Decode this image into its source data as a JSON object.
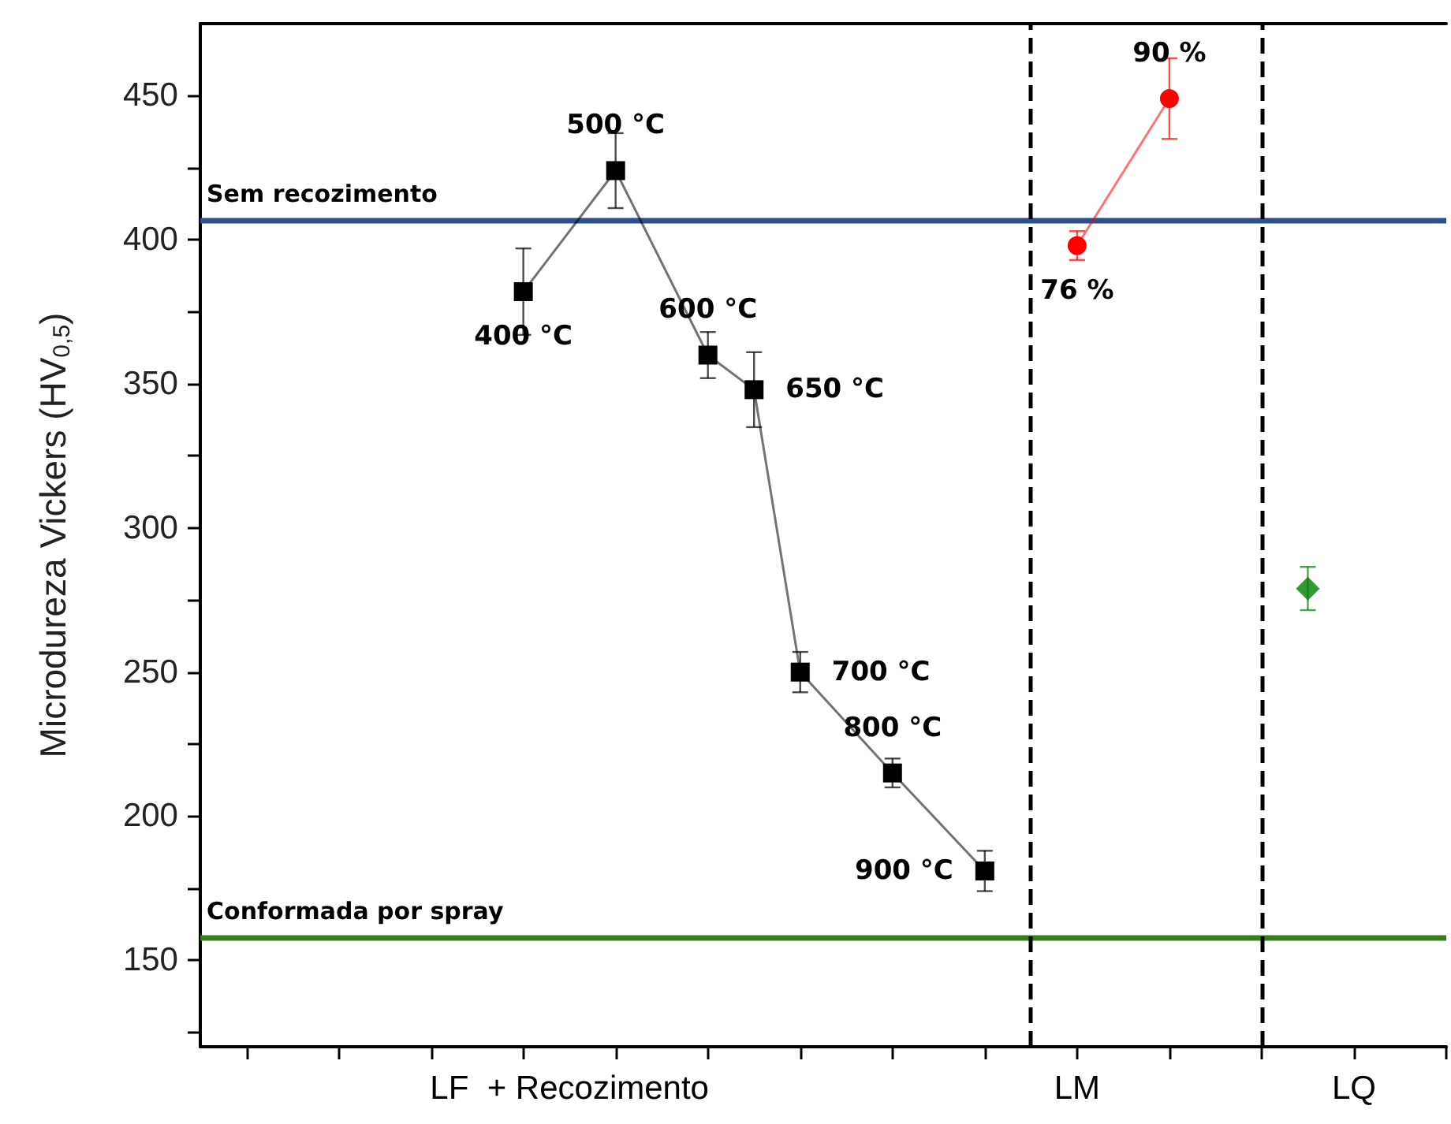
{
  "chart_data": {
    "type": "line",
    "ylabel": "Microdureza Vickers (HV$_{0,5}$)",
    "categories": [
      null,
      null,
      null,
      null,
      null,
      null,
      null,
      null,
      "LF  + Recozimento",
      null,
      null,
      null,
      null,
      null,
      null,
      null,
      null,
      null,
      null,
      "LM",
      null,
      null,
      null,
      null,
      null,
      "LQ",
      null,
      null
    ],
    "ylim": [
      120,
      475
    ],
    "yticks": [
      {
        "value": 125,
        "label": null
      },
      150,
      {
        "value": 175,
        "label": null
      },
      200,
      {
        "value": 225,
        "label": null
      },
      250,
      {
        "value": 275,
        "label": null
      },
      300,
      {
        "value": 325,
        "label": null
      },
      350,
      {
        "value": 375,
        "label": null
      },
      400,
      {
        "value": 425,
        "label": null
      },
      450
    ],
    "line_style": "solid",
    "series": [
      {
        "color": "#000000",
        "marker": "square",
        "values": [
          null,
          null,
          null,
          null,
          null,
          null,
          null,
          382,
          null,
          424,
          null,
          360,
          348,
          250,
          null,
          215,
          null,
          181,
          null,
          null,
          null,
          null,
          null,
          null,
          null,
          null,
          null,
          null
        ],
        "errors": [
          null,
          null,
          null,
          null,
          null,
          null,
          null,
          15,
          null,
          13,
          null,
          8,
          13,
          7,
          null,
          5,
          null,
          7,
          null,
          null,
          null,
          null,
          null,
          null,
          null,
          null,
          null,
          null
        ]
      },
      {
        "color": "#ff0000",
        "marker": "circle",
        "values": [
          null,
          null,
          null,
          null,
          null,
          null,
          null,
          null,
          null,
          null,
          null,
          null,
          null,
          null,
          null,
          null,
          null,
          null,
          null,
          398,
          null,
          449,
          null,
          null,
          null,
          null,
          null,
          null
        ],
        "errors": [
          null,
          null,
          null,
          null,
          null,
          null,
          null,
          null,
          null,
          null,
          null,
          null,
          null,
          null,
          null,
          null,
          null,
          null,
          null,
          5,
          null,
          14,
          null,
          null,
          null,
          null,
          null,
          null
        ]
      },
      {
        "type": "scatter",
        "color": "#008000",
        "marker": "diamond",
        "values": [
          null,
          null,
          null,
          null,
          null,
          null,
          null,
          null,
          null,
          null,
          null,
          null,
          null,
          null,
          null,
          null,
          null,
          null,
          null,
          null,
          null,
          null,
          null,
          null,
          279,
          null,
          null,
          null
        ],
        "errors": [
          null,
          null,
          null,
          null,
          null,
          null,
          null,
          null,
          null,
          null,
          null,
          null,
          null,
          null,
          null,
          null,
          null,
          null,
          null,
          null,
          null,
          null,
          null,
          null,
          7.5,
          null,
          null,
          null
        ]
      }
    ],
    "ref_lines": [
      {
        "axis": "y",
        "value": 407,
        "label": "Sem recozimento",
        "color": "#2e4f94"
      },
      {
        "axis": "y",
        "value": 158,
        "label": "Conformada por spray",
        "color": "#3a7d1e"
      }
    ],
    "annotations": [
      "400 °C",
      "500 °C",
      "600 °C",
      "650 °C",
      "700 °C",
      "800 °C",
      "900 °C",
      "76 %",
      "90 %"
    ]
  }
}
